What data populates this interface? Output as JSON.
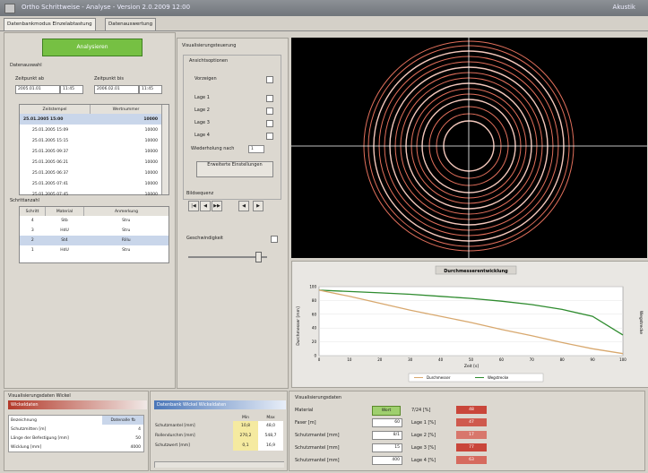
{
  "window": {
    "title": "Ortho Schrittweise - Analyse - Version 2.0.2009 12:00",
    "right_text": "Akustik"
  },
  "tabs": [
    "Datenbankmodus Einzelabtastung",
    "Datenauswertung"
  ],
  "left": {
    "analyze_label": "Analysieren",
    "section_data": "Datenauswahl",
    "from_label": "Zeitpunkt ab",
    "to_label": "Zeitpunkt bis",
    "from_date": "2005.01.01",
    "from_time": "11:45",
    "to_date": "2006.02.01",
    "to_time": "11:45",
    "table_headers": [
      "Zeitstempel",
      "Wertnummer"
    ],
    "rows": [
      {
        "time": "25.01.2005 15:00",
        "val": "10000"
      },
      {
        "time": "25.01.2005 15:09",
        "val": "10000"
      },
      {
        "time": "25.01.2005 15:15",
        "val": "10000"
      },
      {
        "time": "25.01.2005 09:37",
        "val": "10000"
      },
      {
        "time": "25.01.2005 06:21",
        "val": "10000"
      },
      {
        "time": "25.01.2005 06:37",
        "val": "10000"
      },
      {
        "time": "25.01.2005 07:41",
        "val": "10000"
      },
      {
        "time": "25.01.2005 07:45",
        "val": "10000"
      }
    ],
    "section_ctl": "Schrittanzahl",
    "ctl_headers": [
      "Schritt",
      "Material",
      "Anmerkung"
    ],
    "ctl_rows": [
      {
        "a": "4",
        "b": "Stb",
        "c": "Stru"
      },
      {
        "a": "3",
        "b": "HdU",
        "c": "Stru"
      },
      {
        "a": "2",
        "b": "St4",
        "c": "Rillu"
      },
      {
        "a": "1",
        "b": "HdU",
        "c": "Stru"
      }
    ]
  },
  "mid": {
    "title": "Visualisierungsteuerung",
    "group_title": "Ansichtsoptionen",
    "checks": [
      "Vorzeigen",
      "Lage 1",
      "Lage 2",
      "Lage 3",
      "Lage 4"
    ],
    "step_label": "Wiederholung nach",
    "step_value": "1",
    "apply_label": "Erweiterte Einstellungen",
    "player_title": "Bildsequenz",
    "player_buttons": [
      "|◀",
      "◀",
      "▶▶",
      "◀",
      "▶"
    ],
    "speed_label": "Geschwindigkeit",
    "slider_value": 0.88
  },
  "chart": {
    "title": "Durchmesserentwicklung",
    "ylabel_left": "Durchmesser [mm]",
    "ylabel_right": "Wegstrecke",
    "xlabel": "Zeit [s]",
    "legend": [
      "Durchmesser",
      "Wegstrecke"
    ],
    "colors": {
      "s1": "#2e8b2e",
      "s2": "#d8a86e"
    }
  },
  "chart_data": {
    "type": "line",
    "title": "Durchmesserentwicklung",
    "xlabel": "Zeit [s]",
    "ylabel": "Durchmesser [mm]",
    "x": [
      0,
      10,
      20,
      30,
      40,
      50,
      60,
      70,
      80,
      90,
      100
    ],
    "xlim": [
      0,
      100
    ],
    "ylim": [
      0,
      100
    ],
    "yticks": [
      0,
      20,
      40,
      60,
      80,
      100
    ],
    "series": [
      {
        "name": "Durchmesser",
        "values": [
          95,
          93,
          91,
          89,
          86,
          83,
          79,
          74,
          67,
          57,
          30
        ]
      },
      {
        "name": "Wegstrecke",
        "values": [
          95,
          86,
          76,
          66,
          57,
          48,
          38,
          29,
          19,
          10,
          3
        ]
      }
    ]
  },
  "bottom_left": {
    "title": "Visualisierungsdaten Wickel",
    "header": "Wickeldaten",
    "rows": [
      {
        "k": "Bezeichnung",
        "v": "Datenalle fb"
      },
      {
        "k": "Schutzmitten [m]",
        "v": "4"
      },
      {
        "k": "Länge der Befestigung [mm]",
        "v": "50"
      },
      {
        "k": "Wicklung [mm]",
        "v": "4000"
      }
    ]
  },
  "bottom_mid": {
    "header": "Datenbank Wickel Wickeldaten",
    "col_headers": [
      "Min",
      "Max"
    ],
    "rows": [
      {
        "k": "Schutzmantel [mm]",
        "a": "10,8",
        "b": "48,0"
      },
      {
        "k": "Rollendurchm [mm]",
        "a": "270,2",
        "b": "548,7"
      },
      {
        "k": "Schutzwert [mm]",
        "a": "0,1",
        "b": "16,9"
      }
    ]
  },
  "bottom_right": {
    "title": "Visualisierungsdaten",
    "rows": [
      {
        "k": "Material",
        "v": "Wort"
      },
      {
        "k": "Faser [m]",
        "v": "60"
      },
      {
        "k": "Schutzmantel [mm]",
        "v": "8/1"
      },
      {
        "k": "Schutzmantel [mm]",
        "v": "15"
      },
      {
        "k": "Schutzmantel [mm]",
        "v": "400"
      }
    ],
    "right_rows": [
      {
        "k": "7/24 [%]",
        "v": "48"
      },
      {
        "k": "Lage 1 [%]",
        "v": "47"
      },
      {
        "k": "Lage 2 [%]",
        "v": "17"
      },
      {
        "k": "Lage 3 [%]",
        "v": "77"
      },
      {
        "k": "Lage 4 [%]",
        "v": "63"
      }
    ]
  }
}
